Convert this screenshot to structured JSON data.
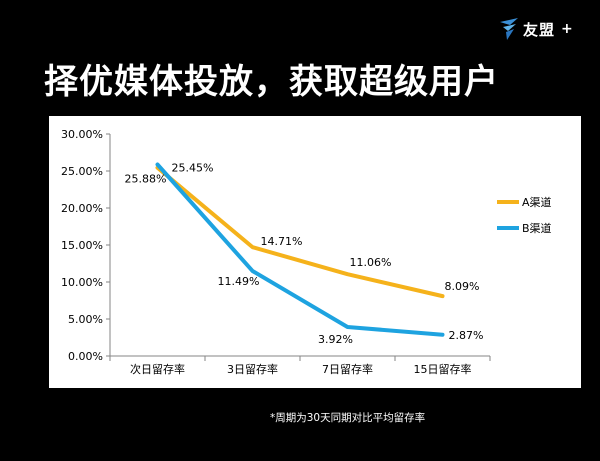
{
  "header": {
    "brand_name": "友盟",
    "brand_plus": "+",
    "logo_icon": "youmeng-bird-icon",
    "brand_color": "#3a8fd6"
  },
  "headline": "择优媒体投放，获取超级用户",
  "footnote": "*周期为30天同期对比平均留存率",
  "chart_data": {
    "type": "line",
    "categories": [
      "次日留存率",
      "3日留存率",
      "7日留存率",
      "15日留存率"
    ],
    "series": [
      {
        "name": "A渠道",
        "color": "#f5b21b",
        "values": [
          25.45,
          14.71,
          11.06,
          8.09
        ],
        "labels": [
          "25.45%",
          "14.71%",
          "11.06%",
          "8.09%"
        ]
      },
      {
        "name": "B渠道",
        "color": "#1ea3e0",
        "values": [
          25.88,
          11.49,
          3.92,
          2.87
        ],
        "labels": [
          "25.88%",
          "11.49%",
          "3.92%",
          "2.87%"
        ]
      }
    ],
    "yticks": [
      "0.00%",
      "5.00%",
      "10.00%",
      "15.00%",
      "20.00%",
      "25.00%",
      "30.00%"
    ],
    "ylim": [
      0,
      30
    ],
    "grid": false,
    "legend_position": "right",
    "title": "",
    "xlabel": "",
    "ylabel": ""
  }
}
